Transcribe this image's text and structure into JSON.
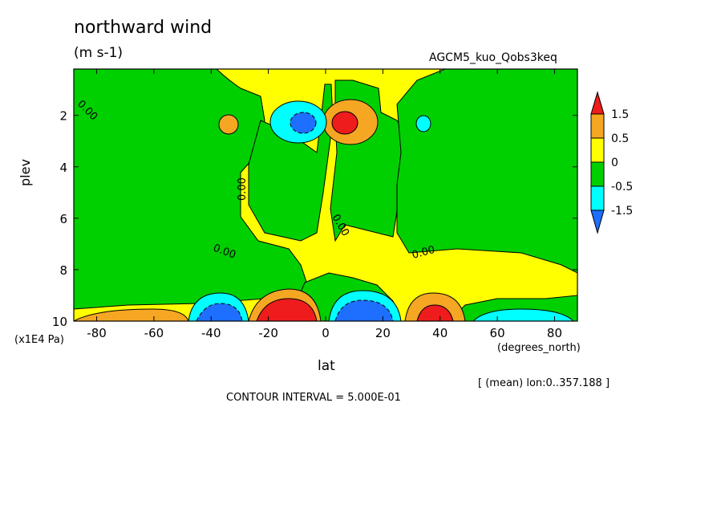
{
  "chart_data": {
    "type": "heatmap",
    "title": "northward wind",
    "units": "(m s-1)",
    "run_label": "AGCM5_kuo_Qobs3keq",
    "xlabel": "lat",
    "xlabel_unit": "(degrees_north)",
    "ylabel": "plev",
    "ylabel_unit": "(x1E4 Pa)",
    "xlim": [
      -88,
      88
    ],
    "ylim": [
      0.2,
      10
    ],
    "y_inverted": true,
    "x_ticks": [
      "-80",
      "-60",
      "-40",
      "-20",
      "0",
      "20",
      "40",
      "60",
      "80"
    ],
    "y_ticks": [
      "2",
      "4",
      "6",
      "8",
      "10"
    ],
    "contour_labels": [
      "0.00",
      "0.00",
      "0.00",
      "0.00",
      "0.00",
      "0.00"
    ],
    "contour_interval_text": "CONTOUR INTERVAL = 5.000E-01",
    "mean_note": "[ (mean) lon:0..357.188 ]",
    "colorbar": {
      "labels": [
        "1.5",
        "0.5",
        "0",
        "-0.5",
        "-1.5"
      ],
      "colors": [
        "#ee1c1c",
        "#f5a623",
        "#ffff00",
        "#00d000",
        "#00ffff",
        "#1e6fff"
      ]
    },
    "features": [
      {
        "name": "max",
        "lat": 7,
        "plev": 2.3,
        "value": 2.0
      },
      {
        "name": "min",
        "lat": -10,
        "plev": 2.3,
        "value": -1.8
      },
      {
        "name": "max",
        "lat": -7,
        "plev": 9.7,
        "value": 2.0
      },
      {
        "name": "min",
        "lat": 10,
        "plev": 9.7,
        "value": -2.0
      },
      {
        "name": "max",
        "lat": 37,
        "plev": 9.8,
        "value": 1.6
      },
      {
        "name": "min",
        "lat": -38,
        "plev": 9.8,
        "value": -1.6
      }
    ]
  }
}
